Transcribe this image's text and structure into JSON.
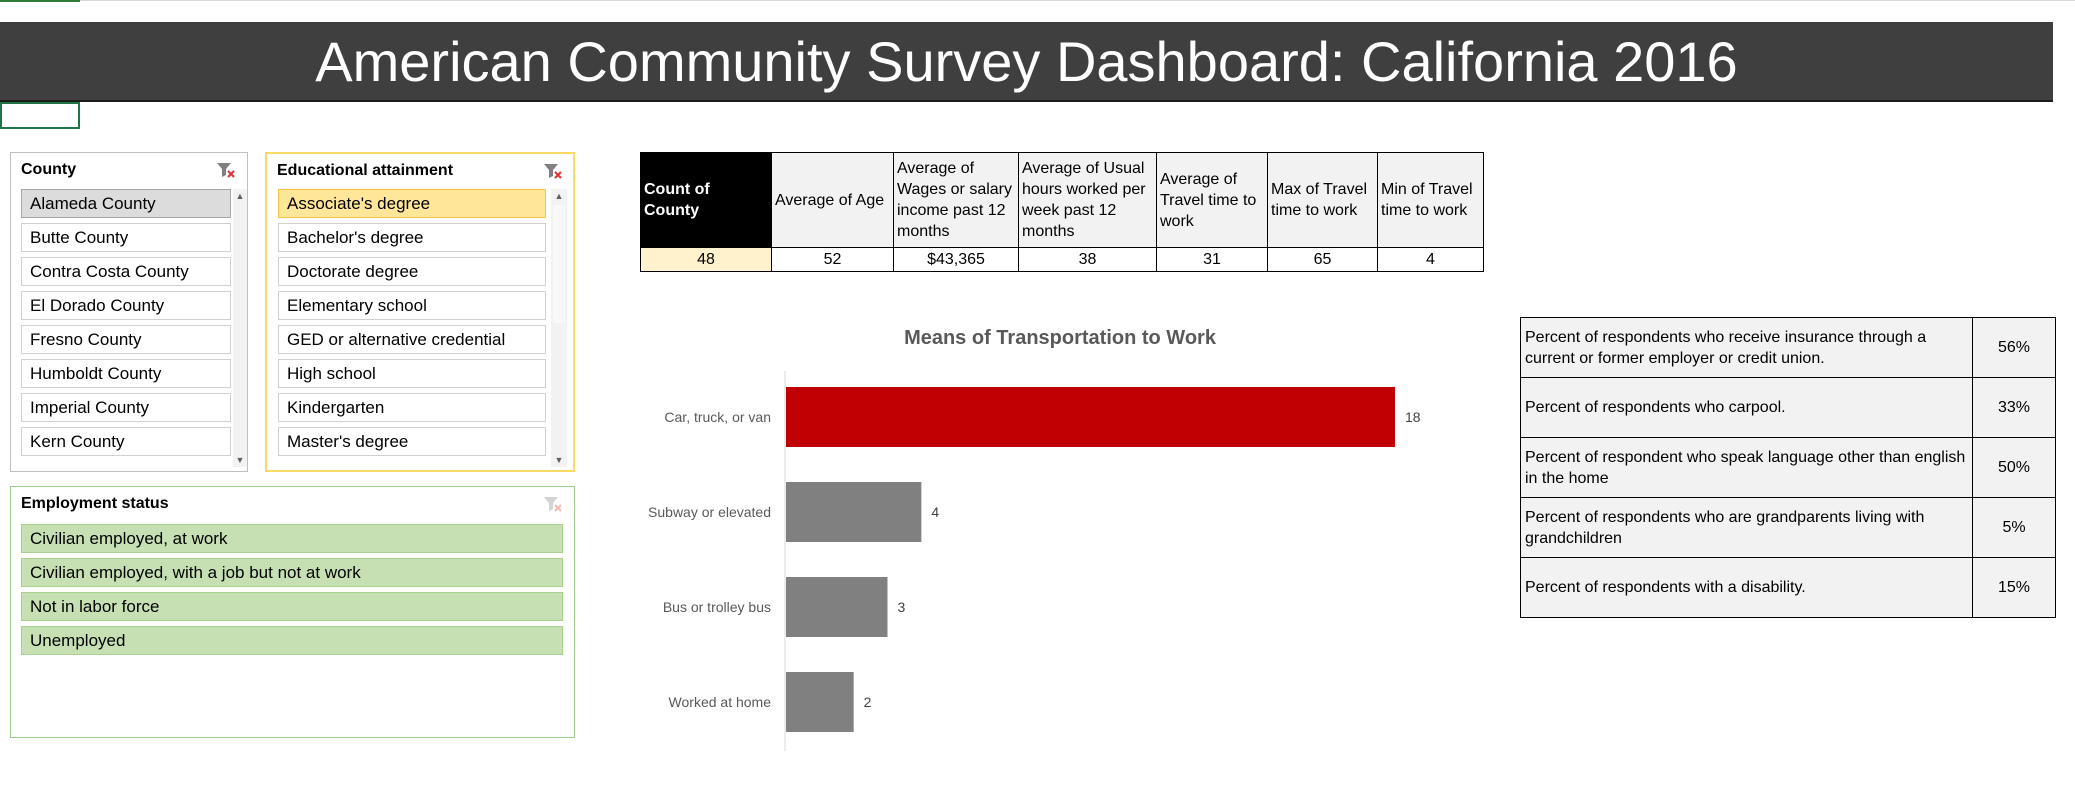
{
  "header": {
    "title": "American Community Survey Dashboard: California 2016"
  },
  "slicers": {
    "county": {
      "title": "County",
      "items": [
        "Alameda County",
        "Butte County",
        "Contra Costa County",
        "El Dorado County",
        "Fresno County",
        "Humboldt County",
        "Imperial County",
        "Kern County"
      ],
      "selected_index": 0
    },
    "education": {
      "title": "Educational attainment",
      "items": [
        "Associate's degree",
        "Bachelor's degree",
        "Doctorate degree",
        "Elementary school",
        "GED or alternative credential",
        "High school",
        "Kindergarten",
        "Master's degree"
      ],
      "selected_index": 0
    },
    "employment": {
      "title": "Employment status",
      "items": [
        "Civilian employed, at work",
        "Civilian employed, with a job but not at work",
        "Not in labor force",
        "Unemployed"
      ]
    }
  },
  "pivot": {
    "headers": [
      "Count of County",
      "Average of Age",
      "Average of Wages or salary income past 12 months",
      "Average of Usual hours worked per week past 12 months",
      "Average of Travel time to work",
      "Max of Travel time to work",
      "Min of Travel time to work"
    ],
    "values": [
      "48",
      "52",
      "$43,365",
      "38",
      "31",
      "65",
      "4"
    ]
  },
  "chart_data": {
    "type": "bar",
    "orientation": "horizontal",
    "title": "Means of Transportation to Work",
    "categories": [
      "Car, truck, or van",
      "Subway or elevated",
      "Bus or trolley bus",
      "Worked at home"
    ],
    "values": [
      18,
      4,
      3,
      2
    ],
    "data_labels": [
      "18",
      "4",
      "3",
      "2"
    ],
    "xlim": [
      0,
      20
    ],
    "grid": false,
    "colors": {
      "highlight": "#c00000",
      "default": "#808080"
    }
  },
  "stats": [
    {
      "label": "Percent of respondents  who receive insurance through a current or former employer or credit union.",
      "value": "56%"
    },
    {
      "label": "Percent of respondents  who carpool.",
      "value": "33%"
    },
    {
      "label": "Percent of respondent  who speak language other than english in the home",
      "value": "50%"
    },
    {
      "label": "Percent of respondents  who are grandparents living with grandchildren",
      "value": "5%"
    },
    {
      "label": "Percent of respondents with a disability.",
      "value": "15%"
    }
  ],
  "colors": {
    "banner": "#3f3f3f",
    "education_accent": "#ffd966",
    "employment_item": "#c6e0b4"
  }
}
